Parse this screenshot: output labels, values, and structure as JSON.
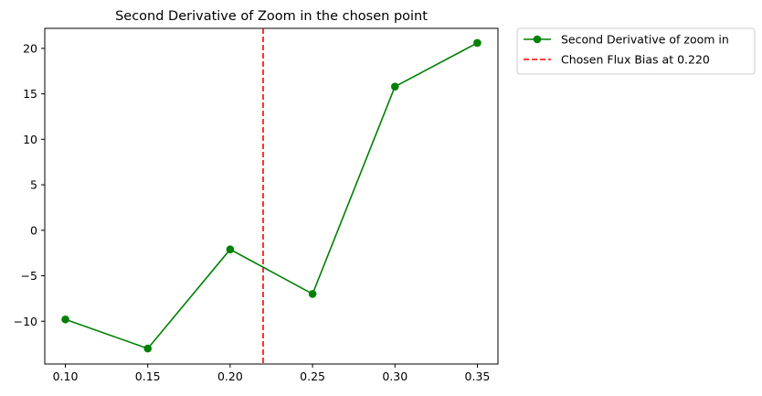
{
  "chart_data": {
    "type": "line",
    "title": "Second Derivative of Zoom in the chosen point",
    "xlabel": "",
    "ylabel": "",
    "x": [
      0.1,
      0.15,
      0.2,
      0.25,
      0.3,
      0.35
    ],
    "xticks": [
      "0.10",
      "0.15",
      "0.20",
      "0.25",
      "0.30",
      "0.35"
    ],
    "yticks": [
      "−10",
      "−5",
      "0",
      "5",
      "10",
      "15",
      "20"
    ],
    "xlim": [
      0.0875,
      0.3625
    ],
    "ylim": [
      -14.7,
      22.2
    ],
    "grid": false,
    "legend_placement": "outside-upper-right",
    "series": [
      {
        "name": "Second Derivative of zoom in",
        "values": [
          -9.8,
          -13.0,
          -2.1,
          -7.0,
          15.8,
          20.6
        ],
        "color": "#008000",
        "marker": "circle",
        "linestyle": "solid"
      }
    ],
    "vlines": [
      {
        "name": "Chosen Flux Bias at 0.220",
        "x": 0.22,
        "color": "#ff0000",
        "linestyle": "dashed"
      }
    ]
  }
}
